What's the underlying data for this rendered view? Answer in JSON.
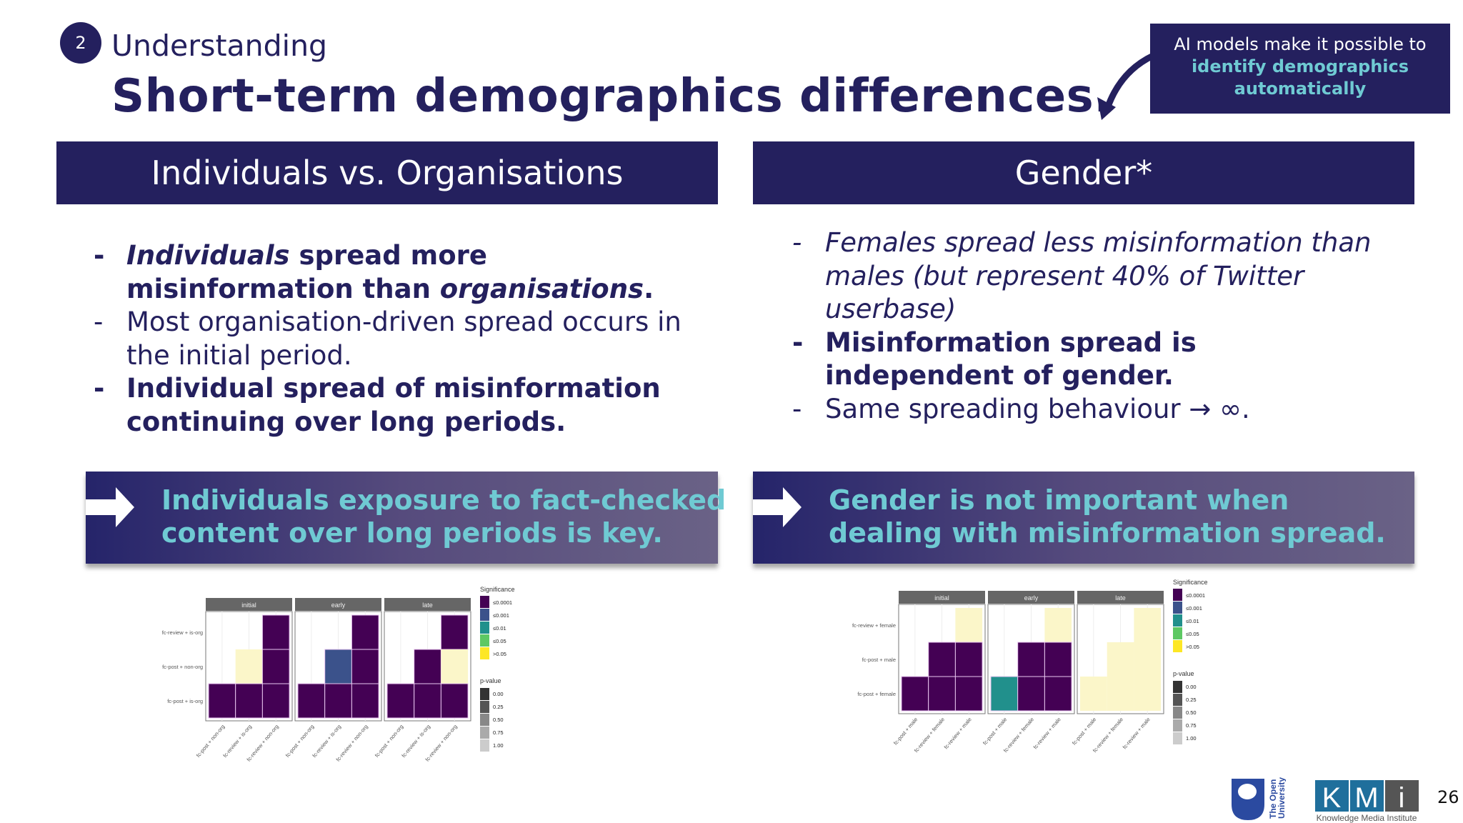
{
  "header": {
    "step_number": "2",
    "subtitle": "Understanding",
    "title": "Short-term demographics differences."
  },
  "callout": {
    "line1": "AI models make it possible to",
    "highlight_line1": "identify demographics",
    "highlight_line2": "automatically"
  },
  "left": {
    "heading": "Individuals vs. Organisations",
    "bullets": [
      {
        "parts": [
          "Individuals",
          " spread more misinformation than ",
          "organisations",
          "."
        ]
      },
      {
        "text": "Most organisation-driven spread occurs in the initial period."
      },
      {
        "text": "Individual spread of misinformation continuing over long periods."
      }
    ],
    "banner": "Individuals  exposure to fact-checked content over long periods is key."
  },
  "right": {
    "heading": "Gender*",
    "bullets": [
      {
        "text": "Females spread less misinformation than males (but represent 40% of Twitter userbase)"
      },
      {
        "text": "Misinformation spread is independent of gender."
      },
      {
        "text": "Same spreading behaviour → ∞."
      }
    ],
    "banner": "Gender is not important when dealing with misinformation spread."
  },
  "colors": {
    "navy": "#24205e",
    "teal_text": "#6fcad3",
    "sig": [
      "#440154",
      "#3b528b",
      "#21908c",
      "#5dc863",
      "#fde725"
    ],
    "pale": "#fbf6c9"
  },
  "chart_data": [
    {
      "type": "heatmap",
      "panels": [
        "initial",
        "early",
        "late"
      ],
      "y_labels": [
        "fc-review + is-org",
        "fc-post + non-org",
        "fc-post + is-org"
      ],
      "x_labels": [
        "fc-post + non-org",
        "fc-review + is-org",
        "fc-review + non-org"
      ],
      "legend_significance_title": "Significance",
      "legend_significance": [
        "≤0.0001",
        "≤0.001",
        "≤0.01",
        "≤0.05",
        ">0.05"
      ],
      "legend_p_title": "p-value",
      "legend_p": [
        "0.00",
        "0.25",
        "0.50",
        "0.75",
        "1.00"
      ],
      "cells": [
        [
          [
            null,
            null,
            "≤0.0001"
          ],
          [
            null,
            ">0.05",
            "≤0.0001"
          ],
          [
            "≤0.0001",
            "≤0.0001",
            "≤0.0001"
          ]
        ],
        [
          [
            null,
            null,
            "≤0.0001"
          ],
          [
            null,
            "≤0.001",
            "≤0.0001"
          ],
          [
            "≤0.0001",
            "≤0.0001",
            "≤0.0001"
          ]
        ],
        [
          [
            null,
            null,
            "≤0.0001"
          ],
          [
            null,
            "≤0.0001",
            ">0.05"
          ],
          [
            "≤0.0001",
            "≤0.0001",
            "≤0.0001"
          ]
        ]
      ]
    },
    {
      "type": "heatmap",
      "panels": [
        "initial",
        "early",
        "late"
      ],
      "y_labels": [
        "fc-review + female",
        "fc-post + male",
        "fc-post + female"
      ],
      "x_labels": [
        "fc-post + male",
        "fc-review + female",
        "fc-review + male"
      ],
      "legend_significance_title": "Significance",
      "legend_significance": [
        "≤0.0001",
        "≤0.001",
        "≤0.01",
        "≤0.05",
        ">0.05"
      ],
      "legend_p_title": "p-value",
      "legend_p": [
        "0.00",
        "0.25",
        "0.50",
        "0.75",
        "1.00"
      ],
      "cells": [
        [
          [
            null,
            null,
            ">0.05"
          ],
          [
            null,
            "≤0.0001",
            "≤0.0001"
          ],
          [
            "≤0.0001",
            "≤0.0001",
            "≤0.0001"
          ]
        ],
        [
          [
            null,
            null,
            ">0.05"
          ],
          [
            null,
            "≤0.0001",
            "≤0.0001"
          ],
          [
            "≤0.01",
            "≤0.0001",
            "≤0.0001"
          ]
        ],
        [
          [
            null,
            null,
            ">0.05"
          ],
          [
            null,
            ">0.05",
            ">0.05"
          ],
          [
            ">0.05",
            ">0.05",
            ">0.05"
          ]
        ]
      ]
    }
  ],
  "footer": {
    "ou_logo": "The Open University",
    "kmi_logo": "KMi",
    "kmi_caption": "Knowledge Media Institute",
    "page_number": "26"
  }
}
